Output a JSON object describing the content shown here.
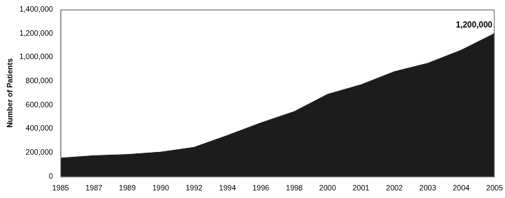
{
  "chart_data": {
    "type": "area",
    "y_label": "Number of Patients",
    "categories": [
      "1985",
      "1987",
      "1989",
      "1990",
      "1992",
      "1994",
      "1996",
      "1998",
      "2000",
      "2001",
      "2002",
      "2003",
      "2004",
      "2005"
    ],
    "values": [
      155000,
      175000,
      185000,
      205000,
      245000,
      345000,
      450000,
      545000,
      690000,
      770000,
      880000,
      950000,
      1060000,
      1200000
    ],
    "color": "#1c1c1c",
    "ylim": [
      0,
      1400000
    ],
    "yticks": [
      0,
      {
        "value": 200000,
        "label": "200,000"
      },
      {
        "value": 400000,
        "label": "400,000"
      },
      {
        "value": 600000,
        "label": "600,000"
      },
      {
        "value": 800000,
        "label": "800,000"
      },
      {
        "value": 1000000,
        "label": "1,000,000"
      },
      {
        "value": 1200000,
        "label": "1,200,000"
      },
      {
        "value": 1400000,
        "label": "1,400,000"
      }
    ],
    "grid": false,
    "annotations": [
      {
        "x": "2005",
        "y": 1200000,
        "text": "1,200,000"
      }
    ]
  }
}
